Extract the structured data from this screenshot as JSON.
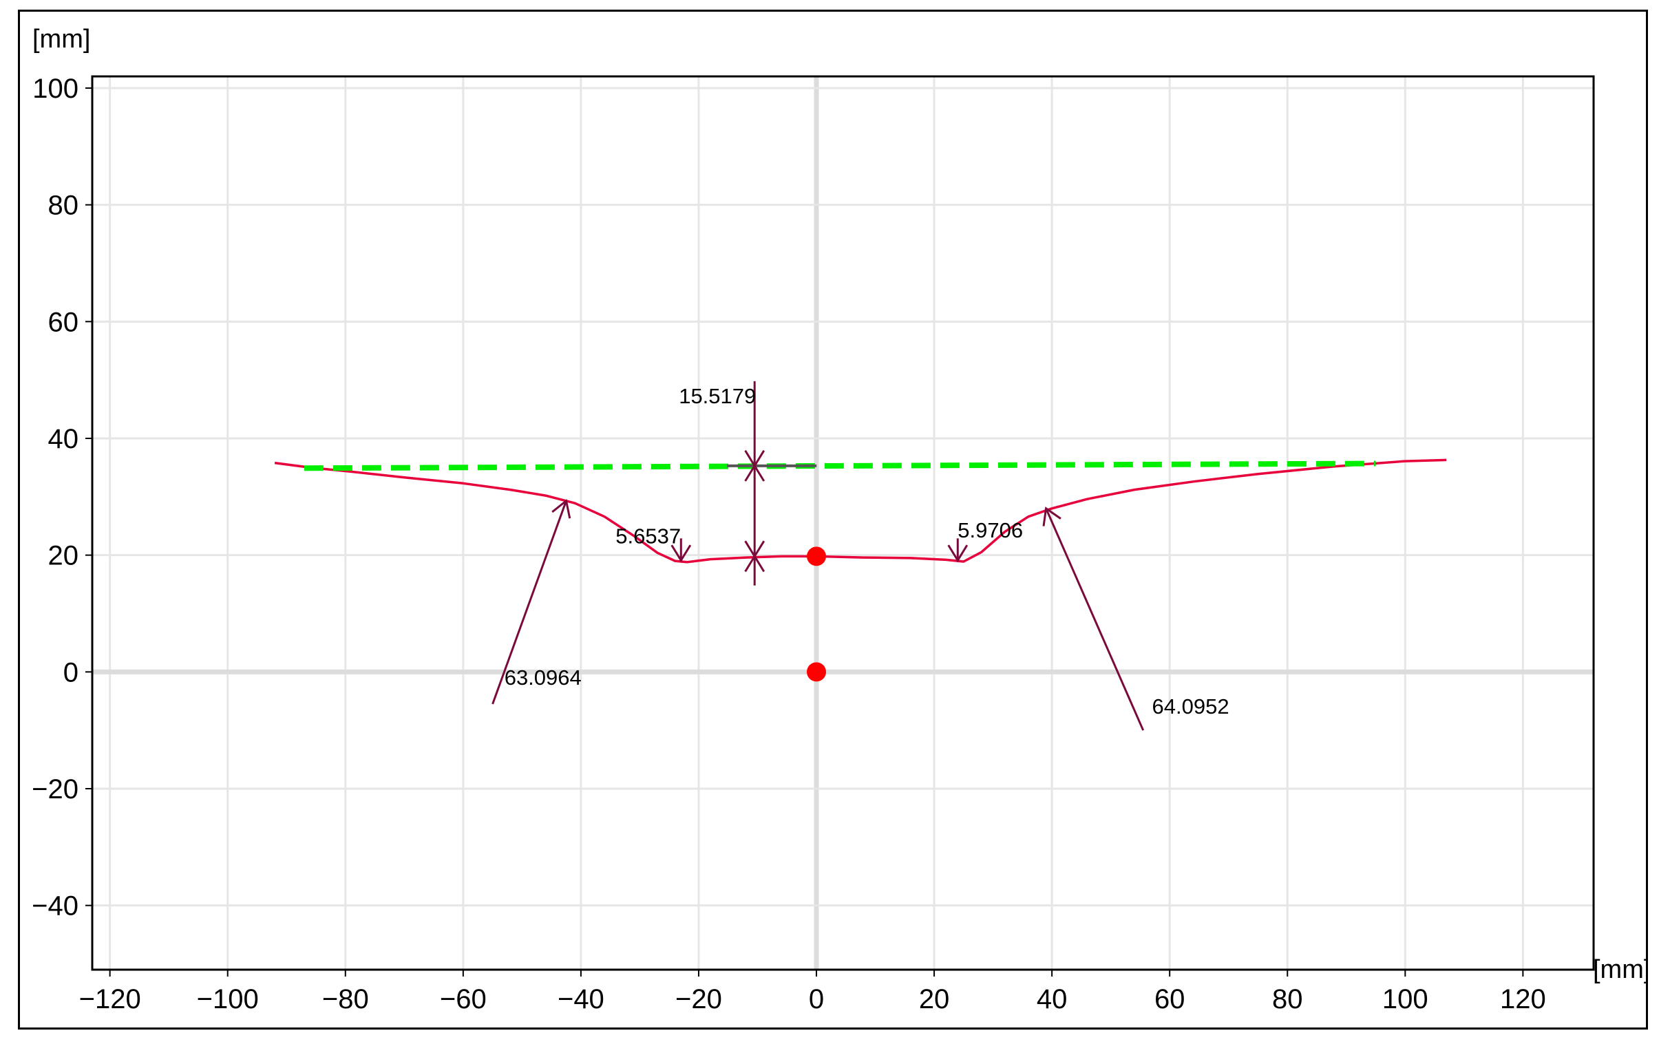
{
  "chart_data": {
    "type": "line",
    "xlabel": "[mm]",
    "ylabel": "[mm]",
    "xlim": [
      -123,
      132
    ],
    "ylim": [
      -51,
      102
    ],
    "xticks": [
      -120,
      -100,
      -80,
      -60,
      -40,
      -20,
      0,
      20,
      40,
      60,
      80,
      100,
      120
    ],
    "yticks": [
      -40,
      -20,
      0,
      20,
      40,
      60,
      80,
      100
    ],
    "xtick_labels": [
      "−120",
      "−100",
      "−80",
      "−60",
      "−40",
      "−20",
      "0",
      "20",
      "40",
      "60",
      "80",
      "100",
      "120"
    ],
    "ytick_labels": [
      "−40",
      "−20",
      "0",
      "20",
      "40",
      "60",
      "80",
      "100"
    ],
    "grid": true,
    "colors": {
      "profile": "#e8003c",
      "reference_line": "#00ee00",
      "annotations": "#7a0a3c",
      "points": "#ff0000",
      "grid": "#e6e6e6",
      "axis_zero": "#dcdcdc"
    },
    "series": [
      {
        "style": "solid",
        "x": [
          -92,
          -86,
          -80,
          -70,
          -60,
          -52,
          -46,
          -41,
          -36,
          -31,
          -27,
          -24,
          -22,
          -18,
          -12,
          -6,
          0,
          8,
          16,
          22,
          25,
          28,
          32,
          36,
          40,
          46,
          54,
          64,
          75,
          88,
          100,
          107
        ],
        "y": [
          35.8,
          35.0,
          34.4,
          33.3,
          32.3,
          31.2,
          30.2,
          28.9,
          26.6,
          23.3,
          20.4,
          19.0,
          18.8,
          19.3,
          19.6,
          19.8,
          19.8,
          19.6,
          19.5,
          19.2,
          18.9,
          20.5,
          24.0,
          26.6,
          28.0,
          29.6,
          31.2,
          32.6,
          33.9,
          35.2,
          36.1,
          36.3
        ]
      },
      {
        "style": "dashed",
        "x": [
          -87,
          95
        ],
        "y": [
          34.9,
          35.7
        ]
      }
    ],
    "points": [
      {
        "x": 0,
        "y": 19.8
      },
      {
        "x": 0,
        "y": 0
      }
    ],
    "annotations": [
      {
        "text": "15.5179",
        "kind": "height",
        "x": -10.5,
        "y1": 19.8,
        "y2": 35.3
      },
      {
        "text": "5.6537",
        "kind": "radius",
        "target_x": -23,
        "target_y": 19.1,
        "label_x": -27,
        "label_y": 22
      },
      {
        "text": "5.9706",
        "kind": "radius",
        "target_x": 24,
        "target_y": 19.1,
        "label_x": 27,
        "label_y": 23
      },
      {
        "text": "63.0964",
        "kind": "radius",
        "tail_x": -55,
        "tail_y": -5.5,
        "head_x": -42.5,
        "head_y": 29.3,
        "label_x": -53,
        "label_y": -1
      },
      {
        "text": "64.0952",
        "kind": "radius",
        "tail_x": 55.5,
        "tail_y": -10,
        "head_x": 39,
        "head_y": 28,
        "label_x": 57,
        "label_y": -6
      }
    ]
  }
}
